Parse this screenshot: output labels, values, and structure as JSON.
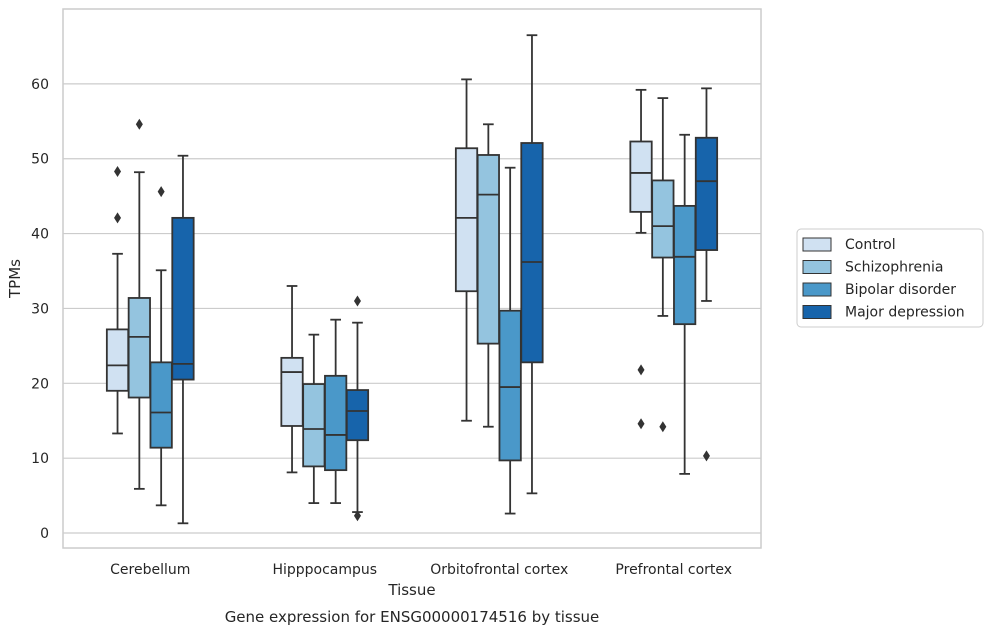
{
  "chart_data": {
    "type": "box",
    "title": "",
    "caption": "Gene expression for ENSG00000174516 by tissue",
    "xlabel": "Tissue",
    "ylabel": "TPMs",
    "ylim": [
      -2,
      70
    ],
    "yticks": [
      0,
      10,
      20,
      30,
      40,
      50,
      60
    ],
    "grid": "horizontal",
    "legend_position": "right",
    "categories": [
      "Cerebellum",
      "Hipppocampus",
      "Orbitofrontal cortex",
      "Prefrontal cortex"
    ],
    "series": [
      {
        "name": "Control",
        "color": "#d0e1f2",
        "boxes": [
          {
            "whislo": 13.3,
            "q1": 19.0,
            "med": 22.4,
            "q3": 27.2,
            "whishi": 37.3,
            "fliers": [
              42.1,
              48.3
            ]
          },
          {
            "whislo": 8.1,
            "q1": 14.3,
            "med": 21.5,
            "q3": 23.4,
            "whishi": 33.0,
            "fliers": []
          },
          {
            "whislo": 15.0,
            "q1": 32.3,
            "med": 42.1,
            "q3": 51.4,
            "whishi": 60.6,
            "fliers": []
          },
          {
            "whislo": 40.1,
            "q1": 42.9,
            "med": 48.1,
            "q3": 52.3,
            "whishi": 59.2,
            "fliers": [
              14.6,
              21.8
            ]
          }
        ]
      },
      {
        "name": "Schizophrenia",
        "color": "#94c4df",
        "boxes": [
          {
            "whislo": 5.9,
            "q1": 18.1,
            "med": 26.2,
            "q3": 31.4,
            "whishi": 48.2,
            "fliers": [
              54.6
            ]
          },
          {
            "whislo": 4.0,
            "q1": 8.9,
            "med": 13.9,
            "q3": 19.9,
            "whishi": 26.5,
            "fliers": []
          },
          {
            "whislo": 14.2,
            "q1": 25.3,
            "med": 45.2,
            "q3": 50.5,
            "whishi": 54.6,
            "fliers": []
          },
          {
            "whislo": 29.0,
            "q1": 36.8,
            "med": 41.0,
            "q3": 47.1,
            "whishi": 58.1,
            "fliers": [
              14.2
            ]
          }
        ]
      },
      {
        "name": "Bipolar disorder",
        "color": "#4a98c9",
        "boxes": [
          {
            "whislo": 3.7,
            "q1": 11.4,
            "med": 16.1,
            "q3": 22.8,
            "whishi": 35.1,
            "fliers": [
              45.6
            ]
          },
          {
            "whislo": 4.0,
            "q1": 8.4,
            "med": 13.1,
            "q3": 21.0,
            "whishi": 28.5,
            "fliers": []
          },
          {
            "whislo": 2.6,
            "q1": 9.7,
            "med": 19.5,
            "q3": 29.7,
            "whishi": 48.8,
            "fliers": []
          },
          {
            "whislo": 7.9,
            "q1": 27.9,
            "med": 36.9,
            "q3": 43.7,
            "whishi": 53.2,
            "fliers": []
          }
        ]
      },
      {
        "name": "Major depression",
        "color": "#1764ab",
        "boxes": [
          {
            "whislo": 1.3,
            "q1": 20.5,
            "med": 22.6,
            "q3": 42.1,
            "whishi": 50.4,
            "fliers": []
          },
          {
            "whislo": 2.8,
            "q1": 12.4,
            "med": 16.3,
            "q3": 19.1,
            "whishi": 28.1,
            "fliers": [
              2.3,
              31.0
            ]
          },
          {
            "whislo": 5.3,
            "q1": 22.8,
            "med": 36.2,
            "q3": 52.1,
            "whishi": 66.5,
            "fliers": []
          },
          {
            "whislo": 31.0,
            "q1": 37.8,
            "med": 47.0,
            "q3": 52.8,
            "whishi": 59.4,
            "fliers": [
              10.3
            ]
          }
        ]
      }
    ]
  },
  "colors": {
    "grid": "#cccccc",
    "frame": "#cccccc",
    "line": "#333333"
  }
}
